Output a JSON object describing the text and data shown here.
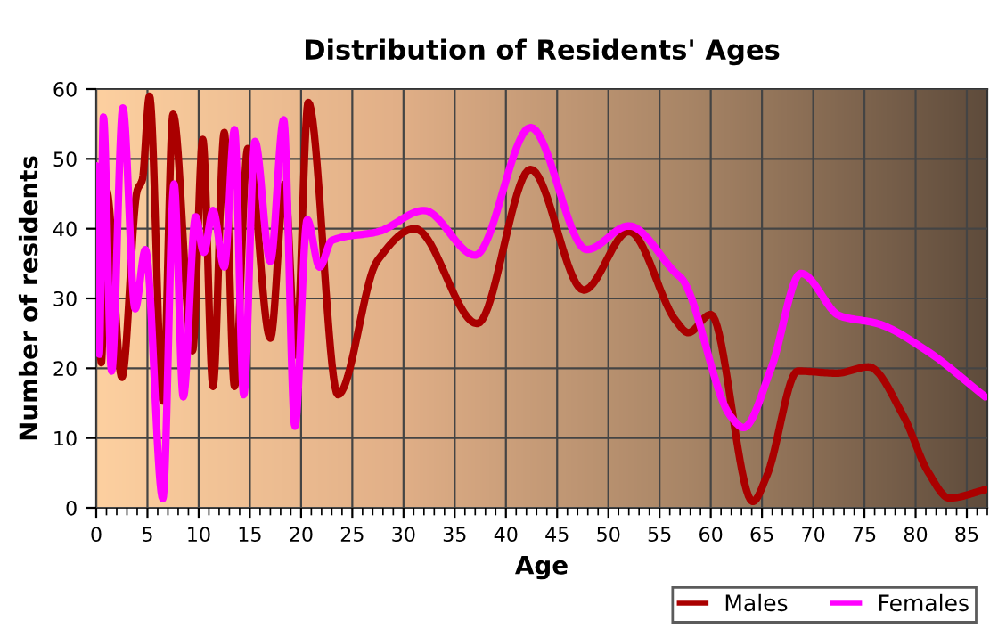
{
  "chart_data": {
    "type": "line",
    "title": "Distribution of Residents' Ages",
    "xlabel": "Age",
    "ylabel": "Number of residents",
    "xlim": [
      0,
      87
    ],
    "xticks": [
      0,
      5,
      10,
      15,
      20,
      25,
      30,
      35,
      40,
      45,
      50,
      55,
      60,
      65,
      70,
      75,
      80,
      85
    ],
    "ylim": [
      0,
      60
    ],
    "yticks": [
      0,
      10,
      20,
      30,
      40,
      50,
      60
    ],
    "grid": true,
    "legend": "bottom right",
    "marker": "none",
    "line_style": "solid",
    "series": [
      {
        "name": "Males",
        "color": "#aa0000",
        "x": [
          0,
          0.5,
          1,
          2.5,
          4,
          4.5,
          5.2,
          6.5,
          7.5,
          9.4,
          10.4,
          11.4,
          12.5,
          13.5,
          14.8,
          17,
          18.4,
          19.5,
          20.7,
          23.6,
          27.4,
          31.1,
          37.2,
          42.4,
          47.6,
          52,
          56.6,
          57.8,
          60,
          64.1,
          65.5,
          68.5,
          72.3,
          75.4,
          78.8,
          81.2,
          83.3,
          86.8
        ],
        "values": [
          45.5,
          20.8,
          45.5,
          18.7,
          45.5,
          47,
          59,
          15.3,
          56.4,
          22.5,
          52.8,
          17.4,
          53.8,
          17.4,
          51.5,
          24.3,
          46.4,
          21.9,
          58.1,
          16.2,
          35.3,
          40,
          26.4,
          48.5,
          31.2,
          39.6,
          26.8,
          25.1,
          27.7,
          0.9,
          4.7,
          19.6,
          19.3,
          20.2,
          13.2,
          5.2,
          1.4,
          2.6
        ]
      },
      {
        "name": "Females",
        "color": "#ff00ff",
        "x": [
          0,
          0.3,
          0.7,
          1.5,
          2.6,
          3.8,
          4.8,
          6.5,
          7.6,
          8.5,
          9.7,
          10.5,
          11.4,
          12.5,
          13.5,
          14.4,
          15.5,
          17,
          18.3,
          19.4,
          20.6,
          21.8,
          23,
          27.6,
          32,
          37,
          42.4,
          47.9,
          52,
          56.6,
          57.2,
          61.9,
          63.2,
          65.9,
          68.8,
          72.6,
          76.3,
          81,
          86.8
        ],
        "values": [
          49,
          22,
          56,
          19.6,
          57.3,
          28.5,
          37,
          1.3,
          46.4,
          15.9,
          41.7,
          36.6,
          42.6,
          34.5,
          54.2,
          16.2,
          52.5,
          35.3,
          55.6,
          11.7,
          41.3,
          34.5,
          38.3,
          39.6,
          42.6,
          36.2,
          54.5,
          37,
          40.4,
          33.6,
          32.8,
          13.2,
          11.5,
          20,
          33.6,
          27.5,
          26.4,
          22.6,
          15.9
        ]
      }
    ]
  }
}
